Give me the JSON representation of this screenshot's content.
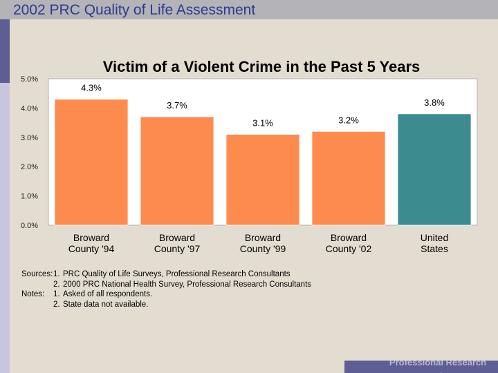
{
  "header": {
    "title": "2002 PRC Quality of Life Assessment"
  },
  "chart_data": {
    "type": "bar",
    "title": "Victim of a Violent Crime in the Past 5 Years",
    "categories": [
      [
        "Broward",
        "County '94"
      ],
      [
        "Broward",
        "County '97"
      ],
      [
        "Broward",
        "County '99"
      ],
      [
        "Broward",
        "County '02"
      ],
      [
        "United",
        "States"
      ]
    ],
    "values": [
      4.3,
      3.7,
      3.1,
      3.2,
      3.8
    ],
    "value_labels": [
      "4.3%",
      "3.7%",
      "3.1%",
      "3.2%",
      "3.8%"
    ],
    "colors": [
      "#fd8b4e",
      "#fd8b4e",
      "#fd8b4e",
      "#fd8b4e",
      "#3b8b8f"
    ],
    "ylim": [
      0,
      5
    ],
    "yticks": [
      {
        "value": 5,
        "label": "5.0%"
      },
      {
        "value": 4,
        "label": "4.0%"
      },
      {
        "value": 3,
        "label": "3.0%"
      },
      {
        "value": 2,
        "label": "2.0%"
      },
      {
        "value": 1,
        "label": "1.0%"
      },
      {
        "value": 0,
        "label": "0.0%"
      }
    ],
    "xlabel": "",
    "ylabel": "",
    "grid": false
  },
  "notes": {
    "sources_label": "Sources:",
    "notes_label": "Notes:",
    "sources": [
      {
        "num": "1.",
        "text": "PRC Quality of Life Surveys, Professional Research Consultants"
      },
      {
        "num": "2.",
        "text": "2000 PRC National Health Survey, Professional Research Consultants"
      }
    ],
    "notes": [
      {
        "num": "1.",
        "text": "Asked of all respondents."
      },
      {
        "num": "2.",
        "text": "State data not available."
      }
    ]
  },
  "footer": {
    "text": "Professional Research Consultants"
  }
}
